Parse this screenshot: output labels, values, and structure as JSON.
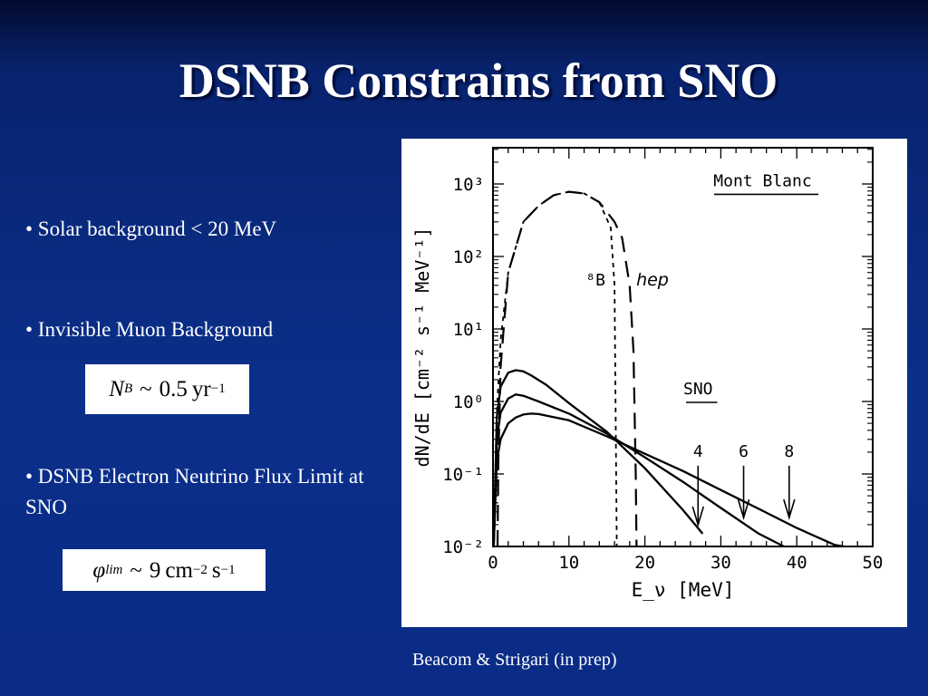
{
  "slide": {
    "title": "DSNB Constrains from SNO",
    "bullets": [
      "• Solar  background < 20 MeV",
      "• Invisible Muon Background",
      "• DSNB Electron Neutrino Flux Limit at SNO"
    ],
    "formula_muon": {
      "symbol": "N",
      "sub": "B",
      "rel": "~",
      "value": "0.5",
      "unit": "yr",
      "exp": "−1"
    },
    "formula_flux": {
      "symbol": "φ",
      "sub": "lim",
      "rel": "~",
      "value": "9",
      "unit1": "cm",
      "exp1": "−2",
      "unit2": "s",
      "exp2": "−1"
    },
    "caption": "Beacom & Strigari (in prep)"
  },
  "chart_data": {
    "type": "line",
    "xlabel": "E_ν [MeV]",
    "ylabel": "dN/dE [cm⁻² s⁻¹ MeV⁻¹]",
    "xlim": [
      0,
      50
    ],
    "ylim_log10": [
      -2,
      3.5
    ],
    "y_scale": "log",
    "x_ticks": [
      0,
      10,
      20,
      30,
      40,
      50
    ],
    "y_ticks": [
      {
        "exp": -2,
        "label": "10⁻²"
      },
      {
        "exp": -1,
        "label": "10⁻¹"
      },
      {
        "exp": 0,
        "label": "10⁰"
      },
      {
        "exp": 1,
        "label": "10¹"
      },
      {
        "exp": 2,
        "label": "10²"
      },
      {
        "exp": 3,
        "label": "10³"
      }
    ],
    "series": [
      {
        "name": "⁸B",
        "style": "dashed",
        "x": [
          0.1,
          0.5,
          1,
          2,
          4,
          6,
          8,
          10,
          12,
          14,
          15.5,
          16,
          16.3
        ],
        "y": [
          0.013,
          0.7,
          7,
          60,
          300,
          500,
          700,
          780,
          740,
          560,
          250,
          40,
          0.01
        ]
      },
      {
        "name": "hep",
        "style": "dashed",
        "x": [
          0.6,
          0.7,
          1,
          2,
          4,
          6,
          8,
          10,
          12,
          14,
          16,
          17,
          18,
          18.5,
          18.8,
          18.9
        ],
        "y": [
          0.01,
          0.15,
          3,
          60,
          300,
          500,
          700,
          780,
          740,
          560,
          300,
          180,
          40,
          5,
          0.1,
          0.01
        ]
      },
      {
        "name": "4",
        "style": "solid",
        "x": [
          0.1,
          0.5,
          1,
          2,
          3,
          4,
          5,
          7,
          10,
          15,
          20,
          25,
          27.6
        ],
        "y": [
          0.01,
          0.6,
          1.6,
          2.5,
          2.7,
          2.6,
          2.3,
          1.7,
          0.95,
          0.38,
          0.12,
          0.032,
          0.015
        ]
      },
      {
        "name": "6",
        "style": "solid",
        "x": [
          0.1,
          0.5,
          1,
          2,
          3,
          4,
          6,
          10,
          15,
          20,
          25,
          30,
          35,
          38.3
        ],
        "y": [
          0.01,
          0.3,
          0.7,
          1.1,
          1.25,
          1.2,
          1.0,
          0.68,
          0.36,
          0.17,
          0.078,
          0.034,
          0.015,
          0.01
        ]
      },
      {
        "name": "8",
        "style": "solid",
        "x": [
          0.1,
          0.5,
          1,
          2,
          3,
          4,
          5,
          6,
          10,
          15,
          20,
          25,
          30,
          35,
          40,
          45,
          46.2
        ],
        "y": [
          0.01,
          0.15,
          0.3,
          0.5,
          0.6,
          0.66,
          0.68,
          0.67,
          0.55,
          0.33,
          0.19,
          0.11,
          0.06,
          0.033,
          0.018,
          0.0105,
          0.01
        ]
      }
    ],
    "arrows": [
      {
        "label": "4",
        "x": 27,
        "y_top": 0.13,
        "y_bottom": 0.02
      },
      {
        "label": "6",
        "x": 33,
        "y_top": 0.13,
        "y_bottom": 0.025
      },
      {
        "label": "8",
        "x": 39,
        "y_top": 0.13,
        "y_bottom": 0.025
      }
    ],
    "annotations": [
      {
        "text": "Mont Blanc",
        "x": 35.5,
        "y_log10": 2.97,
        "underline": true
      },
      {
        "text": "SNO",
        "x": 27,
        "y_log10": 0.1,
        "underline": true
      },
      {
        "text": "⁸B",
        "x": 13.5,
        "y_log10": 1.6,
        "italic": false
      },
      {
        "text": "hep",
        "x": 21,
        "y_log10": 1.6,
        "italic": true
      }
    ]
  }
}
